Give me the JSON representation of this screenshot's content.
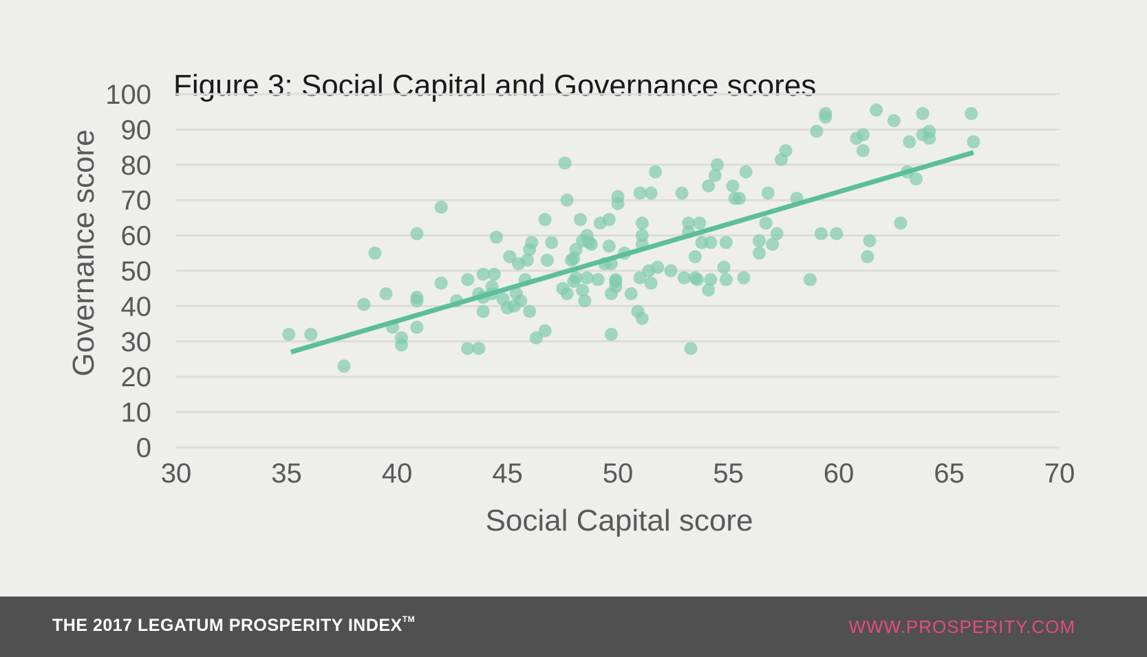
{
  "chart_data": {
    "type": "scatter",
    "title": "Figure 3: Social Capital and Governance scores",
    "xlabel": "Social Capital score",
    "ylabel": "Governance score",
    "xlim": [
      30,
      70
    ],
    "ylim": [
      0,
      100
    ],
    "xticks": [
      "30",
      "35",
      "40",
      "45",
      "50",
      "55",
      "60",
      "65",
      "70"
    ],
    "yticks": [
      "0",
      "10",
      "20",
      "30",
      "40",
      "50",
      "60",
      "70",
      "80",
      "90",
      "100"
    ],
    "grid": "horizontal",
    "colors": {
      "points": "#7fcaad",
      "trendline": "#5cbe9a",
      "grid": "#dcdcdc"
    },
    "points": [
      [
        35.1,
        32
      ],
      [
        36.1,
        32
      ],
      [
        37.6,
        23
      ],
      [
        38.5,
        40.5
      ],
      [
        39,
        55
      ],
      [
        39.5,
        43.5
      ],
      [
        39.8,
        34
      ],
      [
        40.2,
        31
      ],
      [
        40.2,
        29
      ],
      [
        40.9,
        60.5
      ],
      [
        40.9,
        42.5
      ],
      [
        40.9,
        41.5
      ],
      [
        40.9,
        34
      ],
      [
        42,
        68
      ],
      [
        42,
        46.5
      ],
      [
        42.7,
        41.5
      ],
      [
        43.2,
        47.5
      ],
      [
        43.2,
        28
      ],
      [
        43.7,
        28
      ],
      [
        43.7,
        43.5
      ],
      [
        43.9,
        49
      ],
      [
        43.9,
        42.5
      ],
      [
        43.9,
        38.5
      ],
      [
        44.3,
        45.5
      ],
      [
        44.3,
        43.5
      ],
      [
        44.4,
        49
      ],
      [
        44.5,
        59.5
      ],
      [
        44.8,
        42
      ],
      [
        45,
        39.5
      ],
      [
        45.1,
        54
      ],
      [
        45.3,
        40
      ],
      [
        45.4,
        43.5
      ],
      [
        45.5,
        52
      ],
      [
        45.6,
        41.5
      ],
      [
        45.8,
        47.5
      ],
      [
        45.9,
        53
      ],
      [
        46,
        56
      ],
      [
        46,
        38.5
      ],
      [
        46.1,
        58
      ],
      [
        46.3,
        31
      ],
      [
        46.7,
        33
      ],
      [
        46.7,
        64.5
      ],
      [
        46.8,
        53
      ],
      [
        47,
        58
      ],
      [
        47.5,
        45
      ],
      [
        47.6,
        80.5
      ],
      [
        47.7,
        70
      ],
      [
        47.7,
        43.5
      ],
      [
        47.9,
        53
      ],
      [
        48,
        47
      ],
      [
        48,
        53.5
      ],
      [
        48.1,
        56
      ],
      [
        48.1,
        48
      ],
      [
        48.3,
        64.5
      ],
      [
        48.4,
        44.5
      ],
      [
        48.4,
        58.5
      ],
      [
        48.5,
        41.5
      ],
      [
        48.6,
        60
      ],
      [
        48.6,
        48
      ],
      [
        48.7,
        58
      ],
      [
        48.8,
        57.5
      ],
      [
        49.1,
        47.5
      ],
      [
        49.2,
        63.5
      ],
      [
        49.4,
        52
      ],
      [
        49.6,
        64.5
      ],
      [
        49.6,
        57
      ],
      [
        49.7,
        52
      ],
      [
        49.7,
        43.5
      ],
      [
        49.7,
        32
      ],
      [
        49.9,
        47.5
      ],
      [
        49.9,
        47
      ],
      [
        49.9,
        45.5
      ],
      [
        50,
        69
      ],
      [
        50,
        71
      ],
      [
        50.3,
        55
      ],
      [
        50.6,
        43.5
      ],
      [
        50.9,
        38.5
      ],
      [
        51,
        72
      ],
      [
        51,
        48
      ],
      [
        51.1,
        36.5
      ],
      [
        51.1,
        60
      ],
      [
        51.1,
        63.5
      ],
      [
        51.1,
        57.5
      ],
      [
        51.4,
        50
      ],
      [
        51.5,
        46.5
      ],
      [
        51.5,
        72
      ],
      [
        51.7,
        78
      ],
      [
        51.8,
        51
      ],
      [
        52.4,
        50
      ],
      [
        52.9,
        72
      ],
      [
        53,
        48
      ],
      [
        53.2,
        63.5
      ],
      [
        53.2,
        61
      ],
      [
        53.3,
        28
      ],
      [
        53.5,
        54
      ],
      [
        53.5,
        48
      ],
      [
        53.6,
        47.5
      ],
      [
        53.7,
        63.5
      ],
      [
        53.8,
        58
      ],
      [
        54.1,
        74
      ],
      [
        54.1,
        44.5
      ],
      [
        54.2,
        58
      ],
      [
        54.2,
        47.5
      ],
      [
        54.4,
        77
      ],
      [
        54.5,
        80
      ],
      [
        54.8,
        51
      ],
      [
        54.9,
        58
      ],
      [
        54.9,
        47.5
      ],
      [
        55.2,
        74
      ],
      [
        55.3,
        70.5
      ],
      [
        55.5,
        70.5
      ],
      [
        55.7,
        48
      ],
      [
        55.8,
        78
      ],
      [
        56.4,
        58.5
      ],
      [
        56.4,
        55
      ],
      [
        56.7,
        63.5
      ],
      [
        56.8,
        72
      ],
      [
        57,
        57.5
      ],
      [
        57.2,
        60.5
      ],
      [
        57.4,
        81.5
      ],
      [
        57.6,
        84
      ],
      [
        58.1,
        70.5
      ],
      [
        58.7,
        47.5
      ],
      [
        59,
        89.5
      ],
      [
        59.2,
        60.5
      ],
      [
        59.4,
        94.5
      ],
      [
        59.4,
        93.5
      ],
      [
        59.9,
        60.5
      ],
      [
        60.8,
        87.5
      ],
      [
        61.1,
        88.5
      ],
      [
        61.1,
        84
      ],
      [
        61.3,
        54
      ],
      [
        61.4,
        58.5
      ],
      [
        61.7,
        95.5
      ],
      [
        62.5,
        92.5
      ],
      [
        62.8,
        63.5
      ],
      [
        63.1,
        78
      ],
      [
        63.2,
        86.5
      ],
      [
        63.5,
        76
      ],
      [
        63.8,
        94.5
      ],
      [
        63.8,
        88.5
      ],
      [
        64.1,
        89.5
      ],
      [
        64.1,
        87.5
      ],
      [
        66,
        94.5
      ],
      [
        66.1,
        86.5
      ]
    ],
    "trendline": {
      "x": [
        35.2,
        66.1
      ],
      "y": [
        27,
        83.5
      ]
    }
  },
  "footer": {
    "left_text": "THE 2017 LEGATUM PROSPERITY INDEX",
    "left_mark": "TM",
    "right_text": "WWW.PROSPERITY.COM"
  }
}
